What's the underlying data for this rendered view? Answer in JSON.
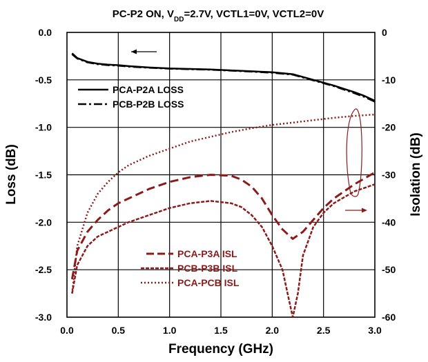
{
  "chart_data": {
    "type": "line",
    "title": "PC-P2 ON, V",
    "title_subscript": "DD",
    "title_suffix": "=2.7V, VCTL1=0V, VCTL2=0V",
    "xlabel": "Frequency (GHz)",
    "ylabel": "Loss (dB)",
    "y2label": "Isolation (dB)",
    "xlim": [
      0.0,
      3.0
    ],
    "ylim": [
      -3.0,
      0.0
    ],
    "y2lim": [
      -60,
      0
    ],
    "grid": true,
    "x_ticks": [
      "0.0",
      "0.5",
      "1.0",
      "1.5",
      "2.0",
      "2.5",
      "3.0"
    ],
    "y_ticks": [
      "0.0",
      "-0.5",
      "-1.0",
      "-1.5",
      "-2.0",
      "-2.5",
      "-3.0"
    ],
    "y2_ticks": [
      "0",
      "-10",
      "-20",
      "-30",
      "-40",
      "-50",
      "-60"
    ],
    "loss_color": "#000000",
    "isolation_color": "#8b1a1a",
    "series": [
      {
        "name": "PCA-P2A LOSS",
        "axis": "left",
        "style": "solid",
        "x": [
          0.05,
          0.1,
          0.2,
          0.3,
          0.4,
          0.5,
          0.6,
          0.8,
          1.0,
          1.2,
          1.4,
          1.6,
          1.8,
          2.0,
          2.2,
          2.4,
          2.6,
          2.8,
          2.9,
          3.0
        ],
        "y": [
          -0.22,
          -0.27,
          -0.31,
          -0.33,
          -0.34,
          -0.345,
          -0.355,
          -0.37,
          -0.38,
          -0.385,
          -0.39,
          -0.4,
          -0.41,
          -0.42,
          -0.44,
          -0.5,
          -0.56,
          -0.63,
          -0.67,
          -0.72
        ]
      },
      {
        "name": "PCB-P2B LOSS",
        "axis": "left",
        "style": "dashdot",
        "x": [
          0.05,
          0.1,
          0.2,
          0.3,
          0.4,
          0.5,
          0.6,
          0.8,
          1.0,
          1.2,
          1.4,
          1.6,
          1.8,
          2.0,
          2.2,
          2.4,
          2.6,
          2.8,
          2.9,
          3.0
        ],
        "y": [
          -0.23,
          -0.275,
          -0.315,
          -0.335,
          -0.345,
          -0.35,
          -0.36,
          -0.372,
          -0.382,
          -0.388,
          -0.393,
          -0.403,
          -0.413,
          -0.425,
          -0.445,
          -0.505,
          -0.565,
          -0.64,
          -0.68,
          -0.73
        ]
      },
      {
        "name": "PCA-P3A ISL",
        "axis": "right",
        "style": "longdash",
        "x": [
          0.05,
          0.1,
          0.2,
          0.3,
          0.4,
          0.5,
          0.6,
          0.8,
          1.0,
          1.2,
          1.4,
          1.6,
          1.7,
          1.8,
          1.9,
          2.0,
          2.1,
          2.2,
          2.3,
          2.4,
          2.5,
          2.6,
          2.8,
          3.0
        ],
        "y": [
          -52,
          -46,
          -42,
          -39.5,
          -37.5,
          -36,
          -35,
          -33,
          -31.5,
          -30.5,
          -30,
          -30.2,
          -31,
          -32.5,
          -35,
          -38.5,
          -41.5,
          -43.5,
          -42,
          -39.5,
          -37,
          -35,
          -32,
          -29.5
        ]
      },
      {
        "name": "PCB-P3B ISL",
        "axis": "right",
        "style": "dash",
        "x": [
          0.05,
          0.1,
          0.2,
          0.3,
          0.4,
          0.5,
          0.6,
          0.8,
          1.0,
          1.2,
          1.4,
          1.6,
          1.7,
          1.8,
          1.9,
          2.0,
          2.1,
          2.15,
          2.2,
          2.25,
          2.3,
          2.4,
          2.5,
          2.6,
          2.8,
          3.0
        ],
        "y": [
          -55,
          -49,
          -45,
          -43,
          -42,
          -41,
          -40,
          -38.5,
          -37,
          -36,
          -35.5,
          -36,
          -36.8,
          -38.5,
          -41,
          -45,
          -50,
          -55,
          -60,
          -55,
          -47,
          -41,
          -38,
          -36,
          -33.5,
          -32
        ]
      },
      {
        "name": "PCA-PCB ISL",
        "axis": "right",
        "style": "dot",
        "x": [
          0.05,
          0.1,
          0.2,
          0.3,
          0.4,
          0.5,
          0.6,
          0.8,
          1.0,
          1.2,
          1.4,
          1.6,
          1.8,
          2.0,
          2.2,
          2.4,
          2.6,
          2.8,
          3.0
        ],
        "y": [
          -55,
          -45,
          -38,
          -34,
          -31.5,
          -29.5,
          -28,
          -26,
          -24.5,
          -23,
          -22,
          -21,
          -20.2,
          -19.5,
          -19,
          -18.5,
          -18,
          -17.6,
          -17.3
        ]
      }
    ],
    "legend_loss": {
      "placement": "top-left",
      "entries": [
        "PCA-P2A LOSS",
        "PCB-P2B LOSS"
      ]
    },
    "legend_isolation": {
      "placement": "bottom-center",
      "entries": [
        "PCA-P3A ISL",
        "PCB-P3B ISL",
        "PCA-PCB ISL"
      ]
    },
    "annotations": [
      {
        "kind": "arrow",
        "direction": "left",
        "meaning": "loss curves use left axis"
      },
      {
        "kind": "arrow",
        "direction": "right",
        "meaning": "isolation curves use right axis"
      },
      {
        "kind": "ellipse",
        "meaning": "circled isolation curves"
      }
    ]
  }
}
